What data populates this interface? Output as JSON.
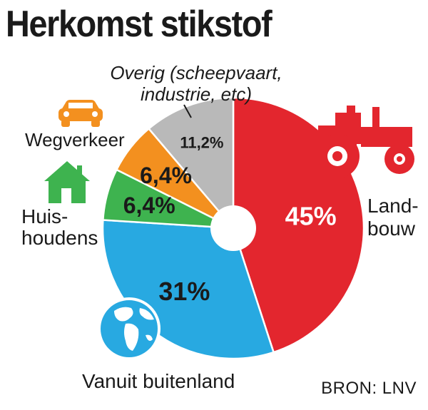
{
  "title": "Herkomst stikstof",
  "source": "BRON: LNV",
  "colors": {
    "landbouw": "#e3262e",
    "buitenland": "#28a9e1",
    "huishoudens": "#3eb34f",
    "wegverkeer": "#f3901f",
    "overig": "#b9b9b9",
    "text": "#1a1a1a"
  },
  "icons": {
    "landbouw": "tractor-icon",
    "buitenland": "globe-icon",
    "huishoudens": "house-icon",
    "wegverkeer": "car-icon"
  },
  "labels": {
    "landbouw_line1": "Land-",
    "landbouw_line2": "bouw",
    "buitenland": "Vanuit buitenland",
    "huishoudens_line1": "Huis-",
    "huishoudens_line2": "houdens",
    "wegverkeer": "Wegverkeer",
    "overig_line1": "Overig (scheepvaart,",
    "overig_line2": "industrie, etc)"
  },
  "chart_data": {
    "type": "pie",
    "donut": true,
    "title": "Herkomst stikstof",
    "slices": [
      {
        "key": "landbouw",
        "value": 45,
        "label": "45%"
      },
      {
        "key": "buitenland",
        "value": 31,
        "label": "31%"
      },
      {
        "key": "huishoudens",
        "value": 6.4,
        "label": "6,4%"
      },
      {
        "key": "wegverkeer",
        "value": 6.4,
        "label": "6,4%"
      },
      {
        "key": "overig",
        "value": 11.2,
        "label": "11,2%"
      }
    ]
  }
}
